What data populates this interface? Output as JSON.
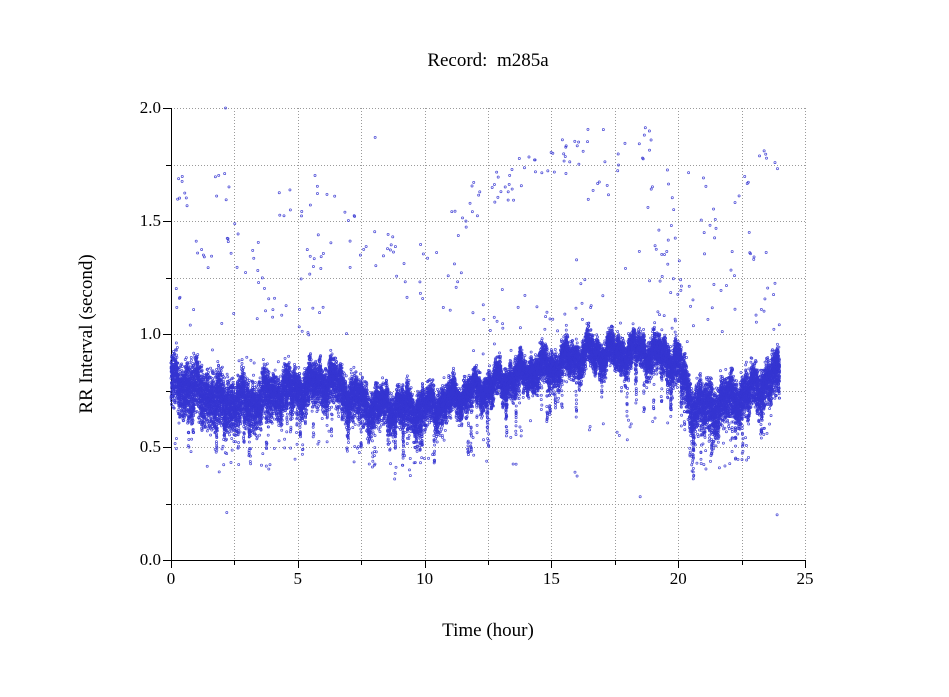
{
  "figure": {
    "background": "#ffffff"
  },
  "chart_data": {
    "type": "scatter",
    "title": "Record:  m285a",
    "xlabel": "Time (hour)",
    "ylabel": "RR Interval (second)",
    "xlim": [
      0,
      25
    ],
    "ylim": [
      0.0,
      2.0
    ],
    "x_major_ticks": [
      0,
      5,
      10,
      15,
      20,
      25
    ],
    "x_tick_labels": [
      "0",
      "5",
      "10",
      "15",
      "20",
      "25"
    ],
    "x_minor_ticks": [
      2.5,
      7.5,
      12.5,
      17.5,
      22.5
    ],
    "y_major_ticks": [
      0.0,
      0.5,
      1.0,
      1.5,
      2.0
    ],
    "y_tick_labels": [
      "0.0",
      "0.5",
      "1.0",
      "1.5",
      "2.0"
    ],
    "y_minor_ticks": [
      0.25,
      0.75,
      1.25,
      1.75
    ],
    "grid": {
      "on": true,
      "style": "dotted",
      "color": "#9a9a9a",
      "x_step": 2.5,
      "y_step": 0.25
    },
    "axis_color": "#000000",
    "point_color": "#3636d2",
    "marker": {
      "shape": "open-circle",
      "radius_px": 1.05
    },
    "legend": "none",
    "band_profile": {
      "description": "dense RR-interval band; knots every 0.5 h from 0 to 24 h",
      "hours_step": 0.5,
      "mean": [
        0.78,
        0.78,
        0.75,
        0.73,
        0.7,
        0.7,
        0.69,
        0.71,
        0.74,
        0.75,
        0.76,
        0.77,
        0.8,
        0.78,
        0.73,
        0.7,
        0.68,
        0.68,
        0.68,
        0.67,
        0.67,
        0.69,
        0.71,
        0.73,
        0.75,
        0.77,
        0.79,
        0.81,
        0.83,
        0.85,
        0.86,
        0.88,
        0.9,
        0.92,
        0.92,
        0.92,
        0.92,
        0.93,
        0.92,
        0.9,
        0.88,
        0.7,
        0.67,
        0.69,
        0.71,
        0.73,
        0.76,
        0.79,
        0.83
      ],
      "spread": [
        0.075,
        0.075,
        0.075,
        0.08,
        0.08,
        0.075,
        0.075,
        0.075,
        0.065,
        0.065,
        0.06,
        0.06,
        0.06,
        0.065,
        0.065,
        0.065,
        0.06,
        0.055,
        0.055,
        0.055,
        0.055,
        0.055,
        0.05,
        0.05,
        0.05,
        0.05,
        0.05,
        0.05,
        0.05,
        0.05,
        0.05,
        0.05,
        0.05,
        0.048,
        0.048,
        0.05,
        0.05,
        0.05,
        0.052,
        0.055,
        0.06,
        0.075,
        0.075,
        0.07,
        0.07,
        0.065,
        0.065,
        0.06,
        0.06
      ],
      "downspike_rate": [
        0.004,
        0.005,
        0.006,
        0.008,
        0.008,
        0.008,
        0.008,
        0.007,
        0.005,
        0.005,
        0.004,
        0.004,
        0.004,
        0.005,
        0.005,
        0.006,
        0.007,
        0.008,
        0.008,
        0.007,
        0.006,
        0.005,
        0.005,
        0.005,
        0.005,
        0.005,
        0.005,
        0.005,
        0.005,
        0.004,
        0.004,
        0.004,
        0.004,
        0.004,
        0.004,
        0.004,
        0.005,
        0.005,
        0.005,
        0.005,
        0.006,
        0.009,
        0.009,
        0.008,
        0.008,
        0.007,
        0.006,
        0.005,
        0.004
      ]
    },
    "outlier_clusters_high": [
      [
        0.05,
        0.65,
        1.55,
        1.7,
        8
      ],
      [
        0.0,
        0.9,
        1.08,
        1.22,
        5
      ],
      [
        0.9,
        1.7,
        1.28,
        1.47,
        7
      ],
      [
        1.3,
        2.3,
        1.58,
        1.74,
        6
      ],
      [
        2.2,
        3.5,
        1.3,
        1.5,
        9
      ],
      [
        2.6,
        3.7,
        1.1,
        1.3,
        6
      ],
      [
        3.8,
        4.7,
        1.05,
        1.26,
        5
      ],
      [
        4.2,
        5.5,
        1.5,
        1.66,
        8
      ],
      [
        4.6,
        5.7,
        1.24,
        1.4,
        6
      ],
      [
        5.6,
        6.5,
        1.6,
        1.74,
        5
      ],
      [
        5.8,
        7.2,
        1.28,
        1.46,
        7
      ],
      [
        6.8,
        7.7,
        1.48,
        1.62,
        4
      ],
      [
        7.4,
        8.5,
        1.3,
        1.46,
        6
      ],
      [
        8.4,
        9.4,
        1.36,
        1.5,
        7
      ],
      [
        8.8,
        10.1,
        1.14,
        1.33,
        7
      ],
      [
        9.7,
        10.7,
        1.33,
        1.45,
        4
      ],
      [
        10.3,
        11.5,
        1.17,
        1.32,
        5
      ],
      [
        11.0,
        12.3,
        1.42,
        1.58,
        8
      ],
      [
        11.8,
        12.9,
        1.54,
        1.68,
        8
      ],
      [
        12.4,
        13.7,
        1.58,
        1.72,
        9
      ],
      [
        13.2,
        14.5,
        1.64,
        1.8,
        9
      ],
      [
        14.2,
        15.7,
        1.7,
        1.85,
        10
      ],
      [
        15.2,
        16.5,
        1.72,
        1.88,
        9
      ],
      [
        16.0,
        17.1,
        1.84,
        1.91,
        3
      ],
      [
        16.2,
        17.7,
        1.58,
        1.78,
        8
      ],
      [
        17.4,
        18.7,
        1.74,
        1.9,
        7
      ],
      [
        18.4,
        19.3,
        1.8,
        1.92,
        4
      ],
      [
        18.8,
        20.1,
        1.54,
        1.75,
        7
      ],
      [
        15.8,
        17.3,
        1.1,
        1.35,
        8
      ],
      [
        17.8,
        19.5,
        1.2,
        1.45,
        8
      ],
      [
        19.2,
        20.5,
        1.26,
        1.48,
        8
      ],
      [
        19.6,
        20.7,
        1.04,
        1.25,
        9
      ],
      [
        13.0,
        15.1,
        1.02,
        1.2,
        6
      ],
      [
        11.6,
        13.1,
        1.0,
        1.15,
        5
      ],
      [
        20.2,
        21.3,
        1.58,
        1.72,
        3
      ],
      [
        20.6,
        21.7,
        1.38,
        1.56,
        7
      ],
      [
        21.0,
        22.3,
        1.18,
        1.38,
        7
      ],
      [
        22.0,
        22.9,
        1.56,
        1.7,
        5
      ],
      [
        22.4,
        23.5,
        1.28,
        1.48,
        6
      ],
      [
        23.2,
        24.0,
        1.66,
        1.84,
        6
      ],
      [
        22.8,
        24.0,
        1.04,
        1.25,
        8
      ],
      [
        0.0,
        24.0,
        0.97,
        1.12,
        40
      ]
    ],
    "outlier_clusters_low": [
      [
        0.1,
        0.6,
        0.47,
        0.55,
        3
      ],
      [
        1.4,
        2.7,
        0.38,
        0.52,
        12
      ],
      [
        3.5,
        4.5,
        0.4,
        0.55,
        9
      ],
      [
        4.6,
        5.3,
        0.44,
        0.52,
        3
      ],
      [
        5.6,
        6.7,
        0.5,
        0.58,
        4
      ],
      [
        7.2,
        8.3,
        0.4,
        0.52,
        7
      ],
      [
        8.4,
        9.7,
        0.35,
        0.5,
        9
      ],
      [
        9.8,
        10.9,
        0.44,
        0.55,
        5
      ],
      [
        11.4,
        12.7,
        0.42,
        0.55,
        6
      ],
      [
        12.8,
        14.3,
        0.54,
        0.62,
        5
      ],
      [
        13.4,
        13.9,
        0.42,
        0.48,
        2
      ],
      [
        15.8,
        16.3,
        0.36,
        0.43,
        2
      ],
      [
        16.4,
        18.3,
        0.5,
        0.62,
        7
      ],
      [
        18.0,
        19.7,
        0.55,
        0.65,
        5
      ],
      [
        20.2,
        21.7,
        0.4,
        0.55,
        14
      ],
      [
        21.7,
        23.3,
        0.4,
        0.55,
        12
      ],
      [
        22.6,
        23.7,
        0.55,
        0.62,
        5
      ]
    ],
    "outlier_points": [
      [
        2.15,
        2.0
      ],
      [
        2.2,
        0.21
      ],
      [
        8.05,
        1.87
      ],
      [
        18.5,
        0.28
      ],
      [
        23.9,
        0.2
      ]
    ],
    "synthesis": {
      "seed": 285,
      "n_band_points": 23000,
      "wobble": [
        0.03,
        6.9,
        0.02,
        14.3,
        0.015,
        31.0
      ]
    }
  }
}
